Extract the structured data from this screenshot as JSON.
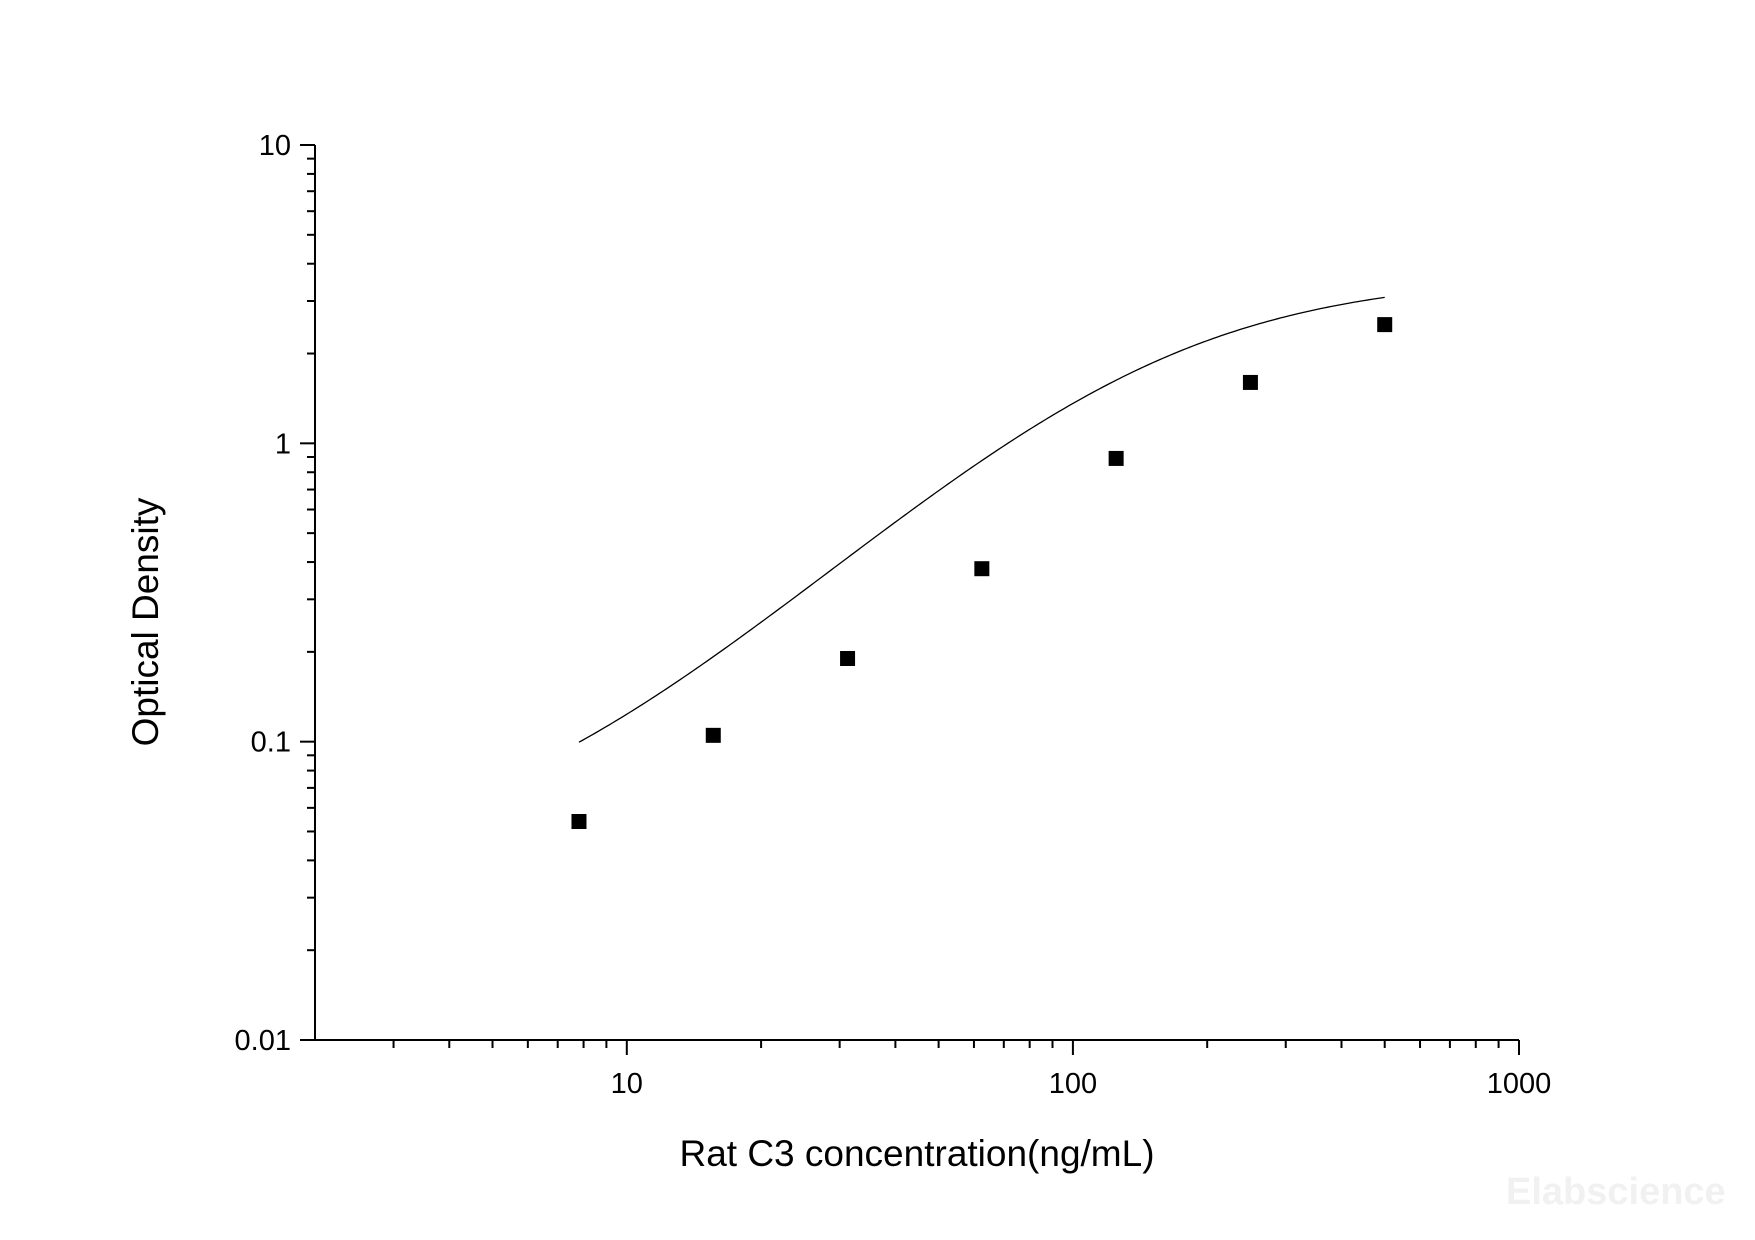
{
  "chart_data": {
    "type": "scatter",
    "xlabel": "Rat C3 concentration(ng/mL)",
    "ylabel": "Optical Density",
    "xscale": "log",
    "yscale": "log",
    "xlim": [
      2,
      1000
    ],
    "ylim": [
      0.01,
      10
    ],
    "x_ticks": [
      {
        "value": 10,
        "label": "10"
      },
      {
        "value": 100,
        "label": "100"
      },
      {
        "value": 1000,
        "label": "1000"
      }
    ],
    "y_ticks": [
      {
        "value": 0.01,
        "label": "0.01"
      },
      {
        "value": 0.1,
        "label": "0.1"
      },
      {
        "value": 1,
        "label": "1"
      },
      {
        "value": 10,
        "label": "10"
      }
    ],
    "grid": false,
    "legend": "none",
    "series": [
      {
        "marker": "square",
        "color": "#000000",
        "points": [
          {
            "x": 7.8125,
            "y": 0.054
          },
          {
            "x": 15.625,
            "y": 0.105
          },
          {
            "x": 31.25,
            "y": 0.19
          },
          {
            "x": 62.5,
            "y": 0.38
          },
          {
            "x": 125,
            "y": 0.89
          },
          {
            "x": 250,
            "y": 1.6
          },
          {
            "x": 500,
            "y": 2.5
          }
        ]
      }
    ],
    "fit_curve": {
      "type": "4PL",
      "color": "#000000",
      "a": 0.0389,
      "b": 1.38,
      "c": 149.4,
      "d": 3.66
    }
  },
  "watermark": "Elabscience"
}
